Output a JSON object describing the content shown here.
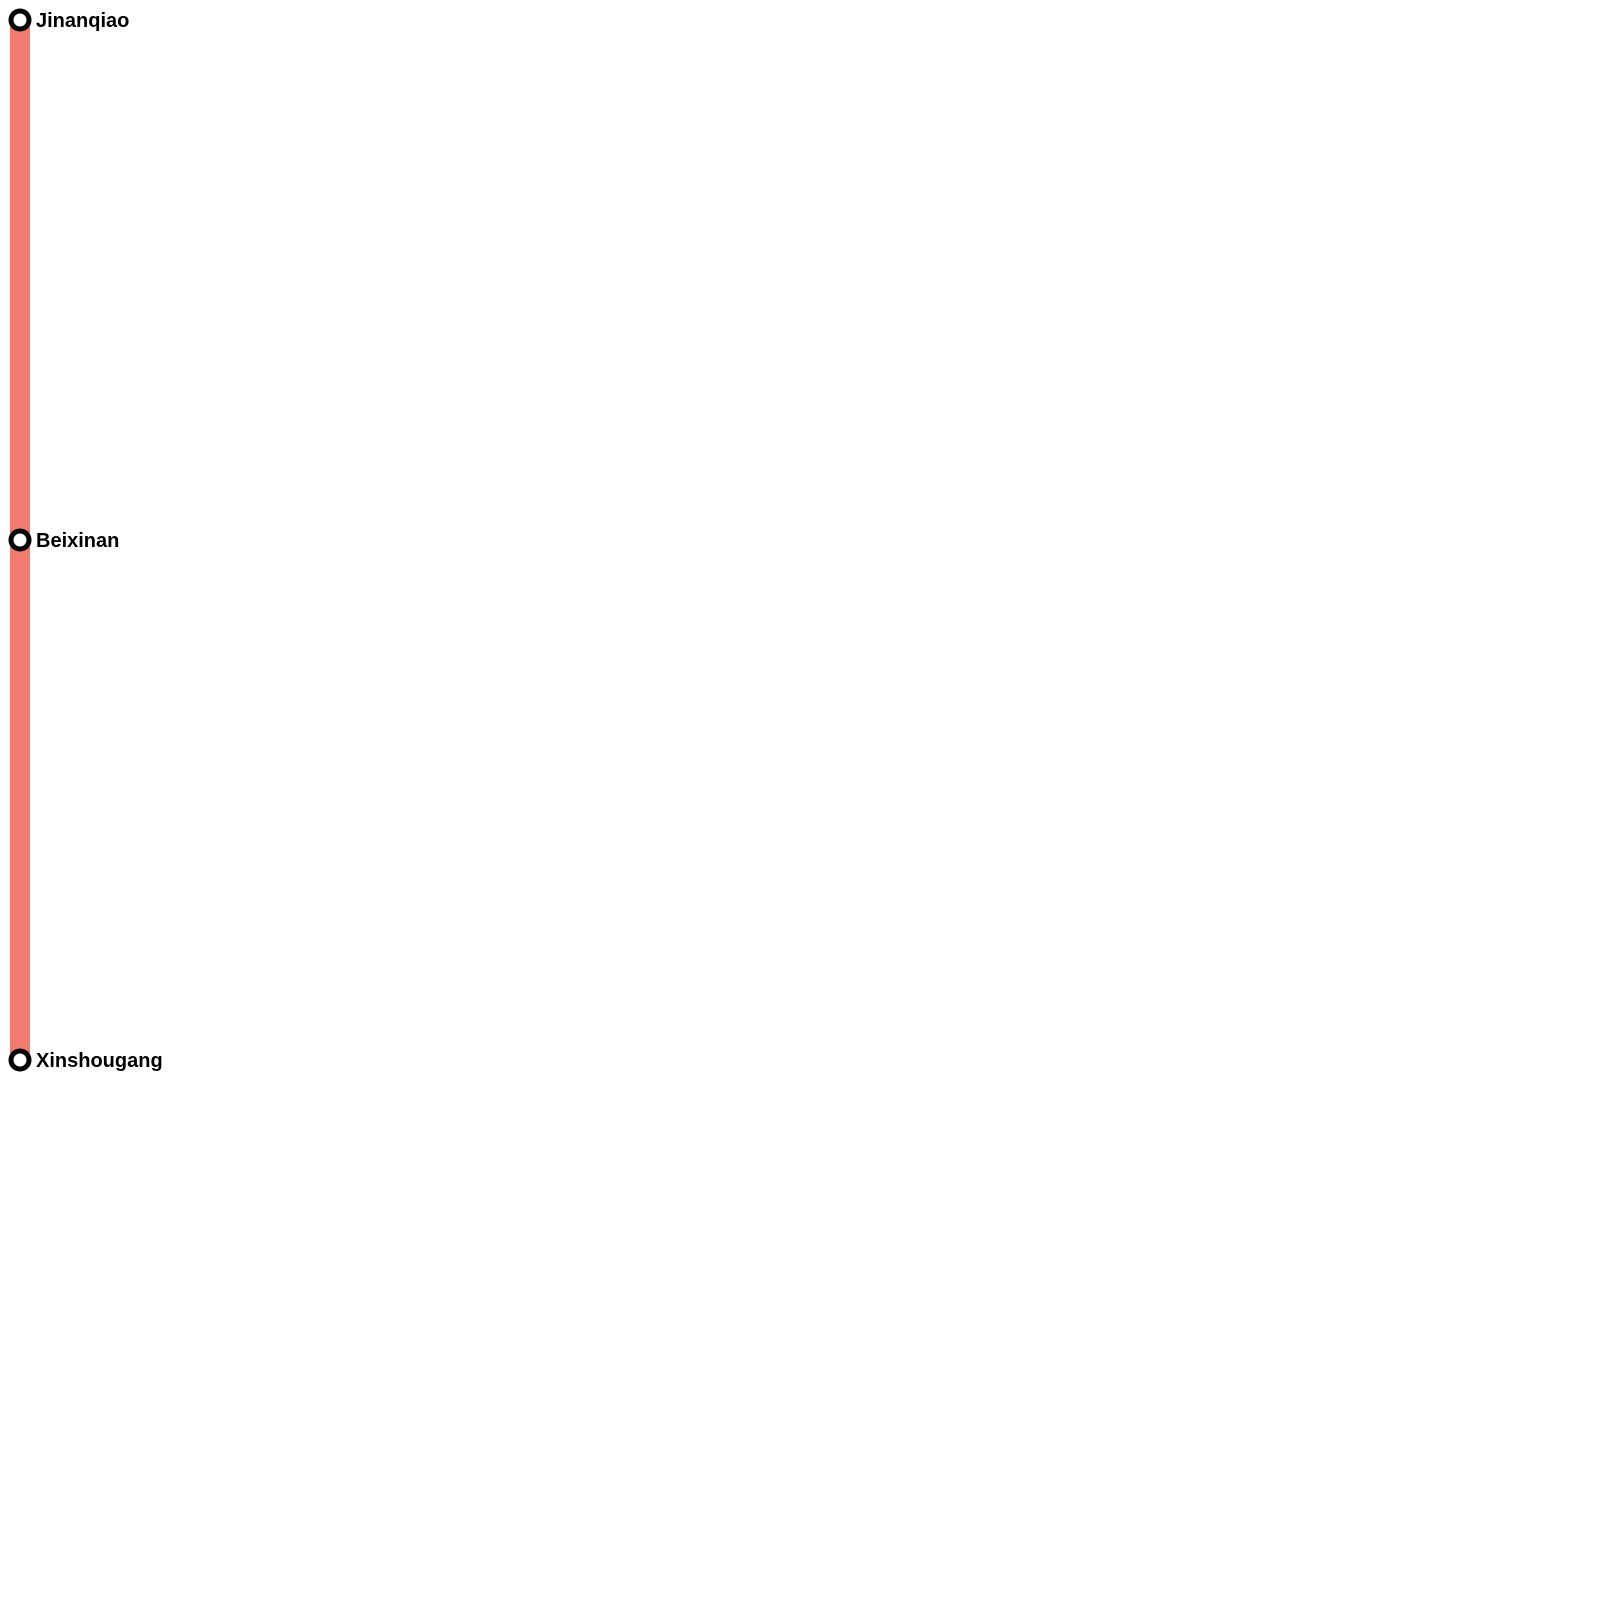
{
  "line": {
    "color": "#f07b6e"
  },
  "stations": [
    {
      "name": "Jinanqiao"
    },
    {
      "name": "Beixinan"
    },
    {
      "name": "Xinshougang"
    }
  ]
}
